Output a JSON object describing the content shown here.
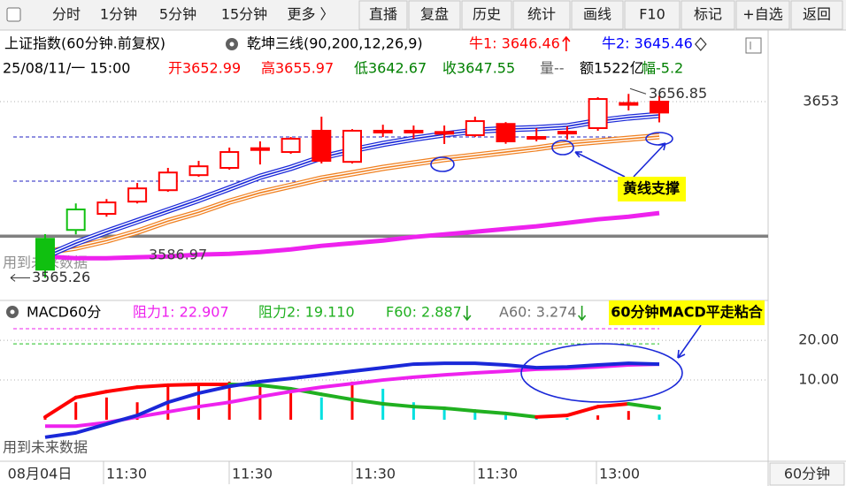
{
  "toolbar": {
    "periods": [
      "分时",
      "1分钟",
      "5分钟",
      "15分钟",
      "更多 〉"
    ],
    "actions": [
      "直播",
      "复盘",
      "历史",
      "统计",
      "画线",
      "F10",
      "标记",
      "+自选",
      "返回"
    ]
  },
  "price_panel": {
    "title": "上证指数(60分钟.前复权)",
    "indicator": "乾坤三线(90,200,12,26,9)",
    "indicator_values": [
      {
        "text": "牛1: 3646.46",
        "color": "#ff0000",
        "marker": "up"
      },
      {
        "text": "牛2: 3645.46",
        "color": "#0000ff",
        "marker": "diamond"
      }
    ],
    "quote": [
      {
        "text": "25/08/11/一 15:00",
        "color": "#000000"
      },
      {
        "text": "开3652.99",
        "color": "#ff0000"
      },
      {
        "text": "高3655.97",
        "color": "#ff0000"
      },
      {
        "text": "低3642.67",
        "color": "#008000"
      },
      {
        "text": "收3647.55",
        "color": "#008000"
      },
      {
        "text": "量--",
        "color": "#606060"
      },
      {
        "text": "额1522亿",
        "color": "#000000"
      },
      {
        "text": "幅-5.2",
        "color": "#008000"
      }
    ],
    "ylim": [
      3554,
      3664
    ],
    "yticks": [
      3653
    ],
    "candles": [
      {
        "open": 3584.7,
        "high": 3587.0,
        "low": 3565.26,
        "close": 3569.3,
        "color": "#10c010",
        "filled": true
      },
      {
        "open": 3599.3,
        "high": 3602.3,
        "low": 3586.9,
        "close": 3589.1,
        "color": "#10c010",
        "filled": false
      },
      {
        "open": 3597.1,
        "high": 3604.5,
        "low": 3595.7,
        "close": 3602.8,
        "color": "#ff0000",
        "filled": false
      },
      {
        "open": 3603.2,
        "high": 3612.5,
        "low": 3602.3,
        "close": 3609.8,
        "color": "#ff0000",
        "filled": false
      },
      {
        "open": 3608.9,
        "high": 3620.0,
        "low": 3608.1,
        "close": 3617.7,
        "color": "#ff0000",
        "filled": false
      },
      {
        "open": 3616.4,
        "high": 3623.5,
        "low": 3615.6,
        "close": 3620.8,
        "color": "#ff0000",
        "filled": false
      },
      {
        "open": 3620.0,
        "high": 3630.1,
        "low": 3619.1,
        "close": 3627.9,
        "color": "#ff0000",
        "filled": false
      },
      {
        "open": 3629.3,
        "high": 3633.2,
        "low": 3621.7,
        "close": 3629.8,
        "color": "#ff0000",
        "filled": false
      },
      {
        "open": 3627.9,
        "high": 3635.4,
        "low": 3627.0,
        "close": 3634.5,
        "color": "#ff0000",
        "filled": false
      },
      {
        "open": 3623.5,
        "high": 3645.5,
        "low": 3622.2,
        "close": 3638.5,
        "color": "#ff0000",
        "filled": true
      },
      {
        "open": 3623.0,
        "high": 3639.3,
        "low": 3622.2,
        "close": 3638.5,
        "color": "#ff0000",
        "filled": false
      },
      {
        "open": 3638.0,
        "high": 3641.5,
        "low": 3635.4,
        "close": 3638.5,
        "color": "#ff0000",
        "filled": false
      },
      {
        "open": 3638.2,
        "high": 3641.1,
        "low": 3634.5,
        "close": 3638.5,
        "color": "#ff0000",
        "filled": false
      },
      {
        "open": 3637.6,
        "high": 3641.1,
        "low": 3631.9,
        "close": 3637.9,
        "color": "#ff0000",
        "filled": false
      },
      {
        "open": 3636.3,
        "high": 3645.5,
        "low": 3635.4,
        "close": 3643.3,
        "color": "#ff0000",
        "filled": false
      },
      {
        "open": 3633.2,
        "high": 3642.8,
        "low": 3632.0,
        "close": 3641.9,
        "color": "#ff0000",
        "filled": true
      },
      {
        "open": 3635.0,
        "high": 3639.8,
        "low": 3633.2,
        "close": 3635.4,
        "color": "#ff0000",
        "filled": false
      },
      {
        "open": 3637.5,
        "high": 3640.7,
        "low": 3634.1,
        "close": 3638.0,
        "color": "#ff0000",
        "filled": false
      },
      {
        "open": 3639.8,
        "high": 3655.2,
        "low": 3638.5,
        "close": 3654.3,
        "color": "#ff0000",
        "filled": false
      },
      {
        "open": 3652.0,
        "high": 3656.85,
        "low": 3648.6,
        "close": 3652.3,
        "color": "#ff0000",
        "filled": false
      },
      {
        "open": 3652.99,
        "high": 3655.97,
        "low": 3642.67,
        "close": 3647.55,
        "color": "#ff0000",
        "filled": true
      }
    ],
    "lines": [
      {
        "color": "#f08020",
        "style": "triple",
        "values": [
          3578.1,
          3580.3,
          3583.8,
          3588.2,
          3593.5,
          3597.9,
          3603.2,
          3607.6,
          3611.1,
          3614.7,
          3617.3,
          3620.0,
          3622.2,
          3624.4,
          3626.1,
          3627.9,
          3629.7,
          3631.9,
          3633.2,
          3634.5,
          3635.8
        ]
      },
      {
        "color": "#ee22ee",
        "style": "thick",
        "values": [
          3575.9,
          3575.0,
          3575.0,
          3575.5,
          3575.9,
          3576.8,
          3577.2,
          3578.1,
          3579.4,
          3581.2,
          3582.5,
          3583.8,
          3585.6,
          3586.9,
          3588.2,
          3589.6,
          3590.9,
          3592.6,
          3594.4,
          3595.7,
          3597.5
        ]
      },
      {
        "color": "#1a28d8",
        "style": "triple",
        "values": [
          3575.9,
          3582.5,
          3588.2,
          3593.5,
          3598.8,
          3604.1,
          3609.8,
          3615.6,
          3620.0,
          3625.2,
          3628.8,
          3631.9,
          3634.5,
          3636.7,
          3638.5,
          3639.3,
          3639.8,
          3640.7,
          3643.3,
          3645.1,
          3646.4
        ]
      }
    ],
    "levels": [
      {
        "value": 3586.0,
        "color": "#808080",
        "style": "solid"
      },
      {
        "value": 3635.4,
        "color": "#2020c0",
        "style": "dashed"
      },
      {
        "value": 3613.4,
        "color": "#2020c0",
        "style": "dashed"
      }
    ],
    "high_label": {
      "value": 3656.85,
      "label": "3656.85"
    },
    "low_label": {
      "value": 3565.26,
      "label": "3565.26"
    },
    "note_value": 3586.97,
    "watermark": "用到未来数据",
    "callout": "黄线支撑"
  },
  "macd_panel": {
    "title": "MACD60分",
    "stats": [
      {
        "text": "阻力1: 22.907",
        "color": "#ee22ee",
        "marker": null
      },
      {
        "text": "阻力2: 19.110",
        "color": "#20b020",
        "marker": null
      },
      {
        "text": "F60: 2.887",
        "color": "#20b020",
        "marker": "down"
      },
      {
        "text": "A60: 3.274",
        "color": "#707070",
        "marker": "down"
      }
    ],
    "callout": "60分钟MACD平走粘合",
    "ylim": [
      -10,
      23.8
    ],
    "yticks": [
      {
        "value": 20,
        "label": "20.00"
      },
      {
        "value": 10,
        "label": "10.00"
      }
    ],
    "levels": [
      {
        "value": 22.907,
        "color": "#ee22ee"
      },
      {
        "value": 19.11,
        "color": "#20c020"
      }
    ],
    "histogram": {
      "values": [
        1.0,
        4.4,
        5.6,
        4.4,
        8.9,
        8.9,
        9.6,
        8.4,
        6.7,
        5.6,
        9.6,
        7.8,
        4.4,
        3.3,
        2.2,
        1.1,
        0.7,
        0.4,
        1.1,
        2.2,
        1.3
      ],
      "colors": [
        "#ff0000",
        "#ff0000",
        "#ff0000",
        "#ff0000",
        "#ff0000",
        "#ff0000",
        "#ff0000",
        "#ff0000",
        "#ff0000",
        "#00e0e0",
        "#ff0000",
        "#00e0e0",
        "#00e0e0",
        "#00e0e0",
        "#00e0e0",
        "#00e0e0",
        "#00e0e0",
        "#00e0e0",
        "#ff0000",
        "#ff0000",
        "#00e0e0"
      ]
    },
    "trend_line": {
      "up_color": "#ff0000",
      "down_color": "#20b020",
      "values": [
        0.7,
        5.6,
        7.1,
        8.2,
        8.7,
        8.9,
        8.9,
        8.7,
        7.8,
        6.4,
        5.1,
        4.0,
        3.3,
        2.9,
        2.2,
        1.6,
        0.7,
        1.1,
        3.3,
        4.0,
        2.9
      ]
    },
    "dea": {
      "color": "#ee22ee",
      "values": [
        -1.6,
        -1.6,
        -0.7,
        0.7,
        2.0,
        3.3,
        4.4,
        5.8,
        7.1,
        8.2,
        9.1,
        10.0,
        10.7,
        11.3,
        11.8,
        12.2,
        12.7,
        12.9,
        13.3,
        13.8,
        14.0
      ]
    },
    "dif": {
      "color": "#1a28d8",
      "values": [
        -4.4,
        -3.3,
        -1.1,
        1.1,
        4.4,
        6.7,
        8.4,
        9.6,
        10.4,
        11.3,
        12.2,
        13.1,
        14.0,
        14.2,
        14.2,
        13.8,
        13.1,
        13.3,
        13.8,
        14.2,
        14.0
      ]
    },
    "watermark": "用到未来数据"
  },
  "x_axis": {
    "labels": [
      "08月04日",
      "11:30",
      "11:30",
      "11:30",
      "11:30",
      "13:00"
    ],
    "period": "60分钟"
  }
}
